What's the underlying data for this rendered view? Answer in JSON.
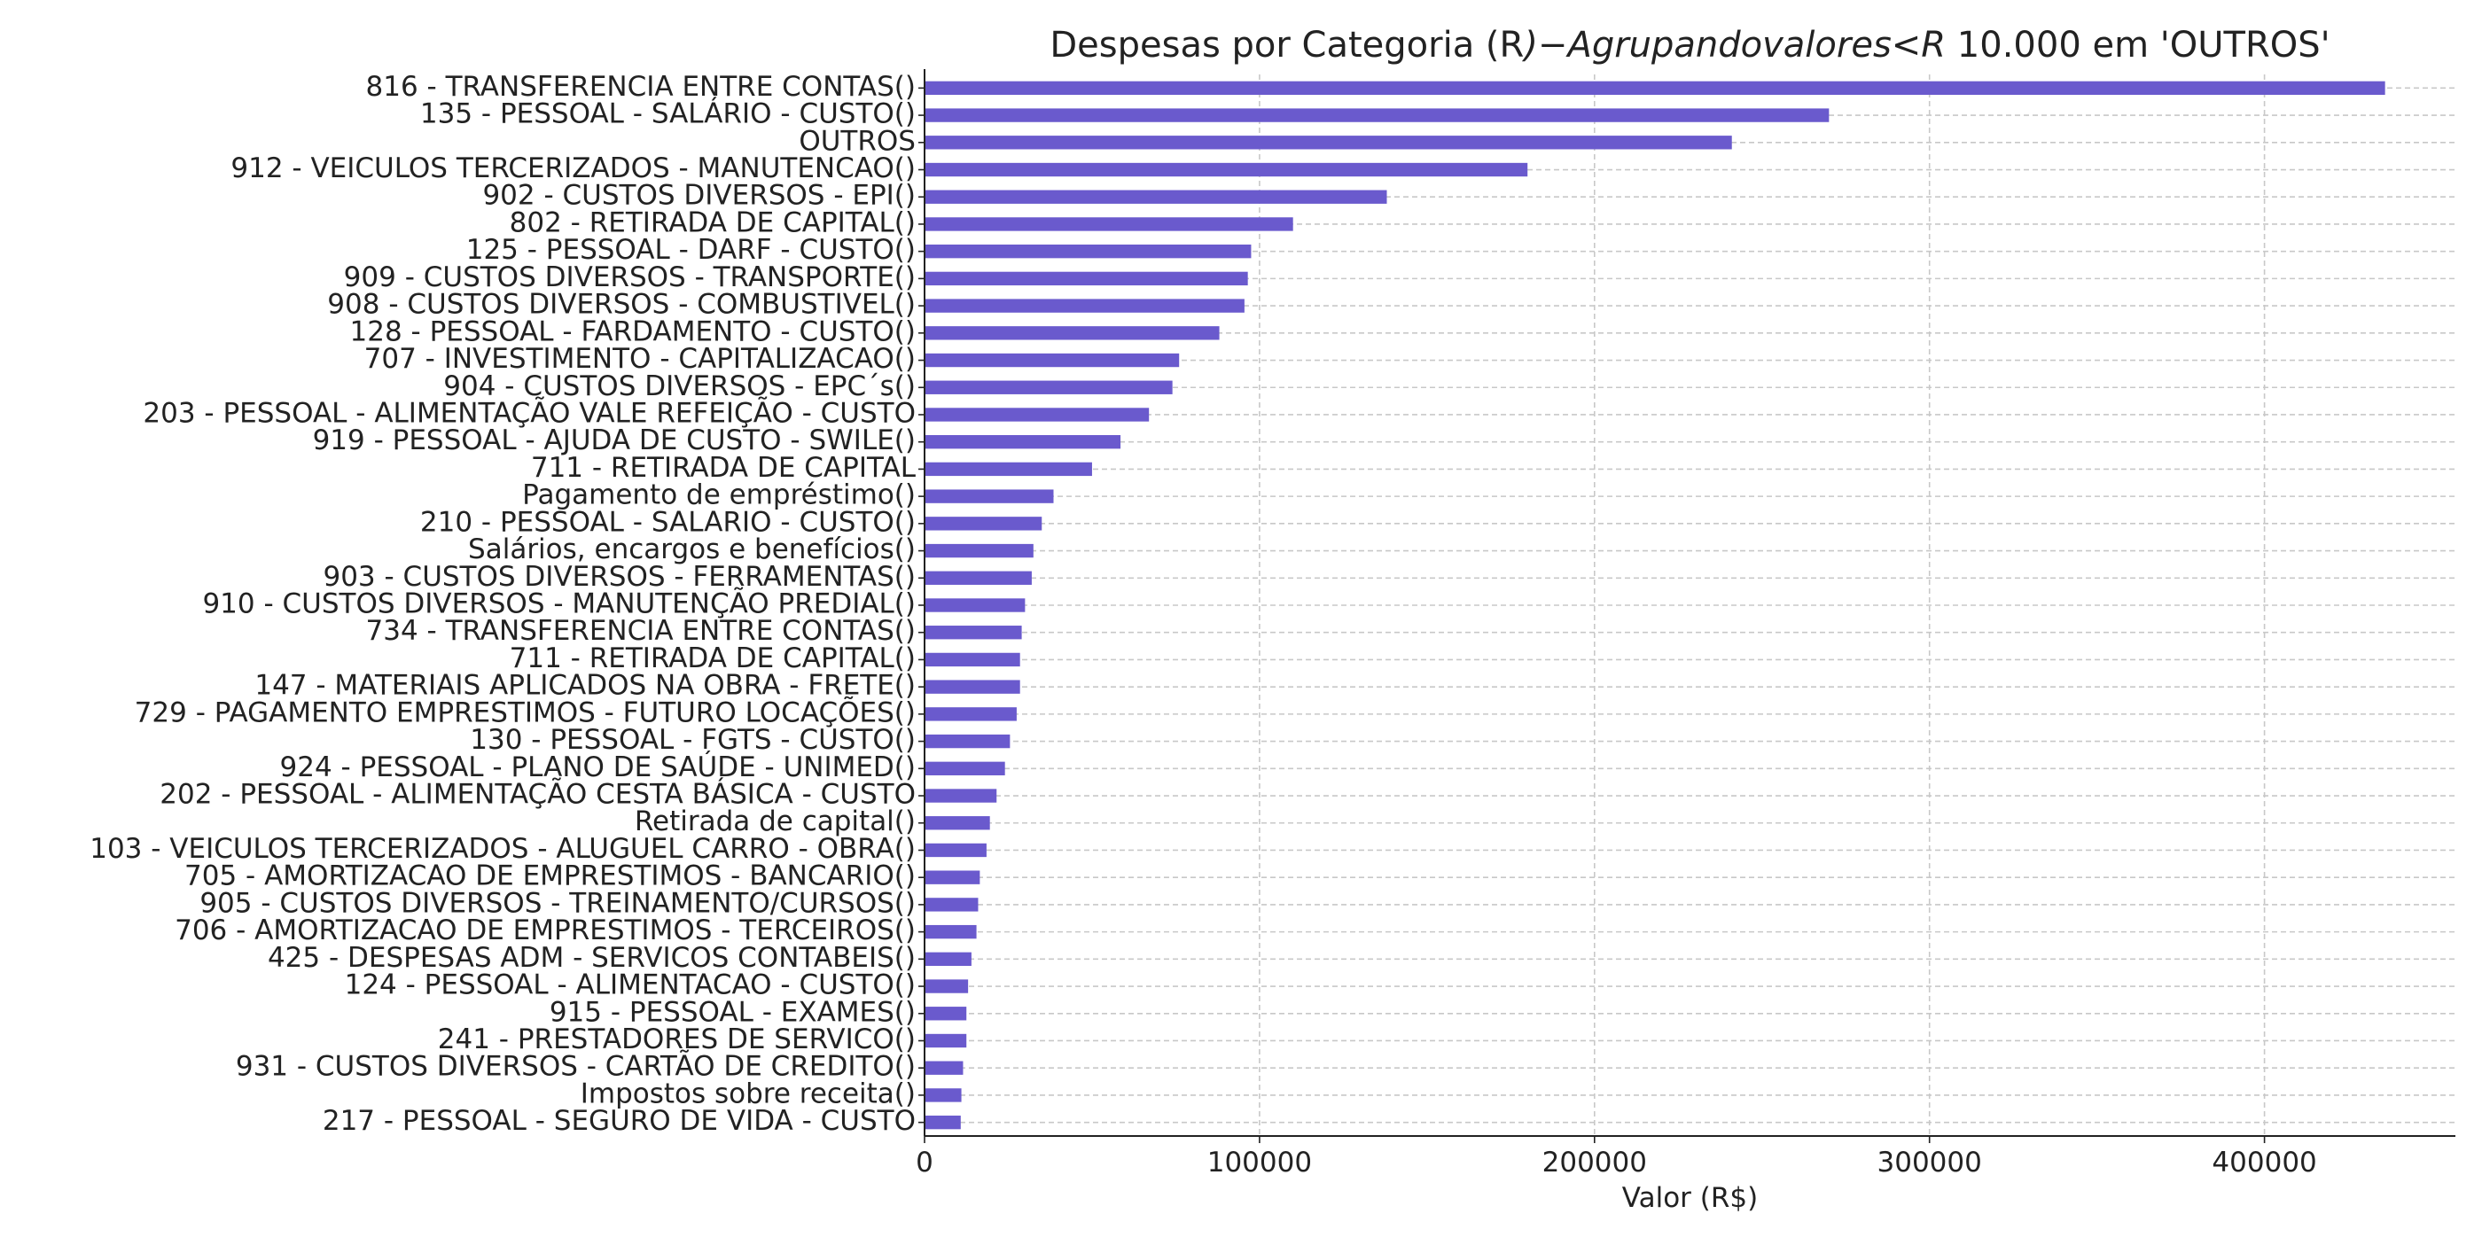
{
  "chart_data": {
    "type": "bar",
    "orientation": "horizontal",
    "title_parts": [
      {
        "text": "Despesas por Categoria (R",
        "style": "normal"
      },
      {
        "text": ")−Agrupandovalores<R",
        "style": "math"
      },
      {
        "text": " 10.000 em 'OUTROS'",
        "style": "normal"
      }
    ],
    "xlabel": "Valor (R$)",
    "ylabel": "",
    "xlim": [
      0,
      457000
    ],
    "xticks": [
      0,
      100000,
      200000,
      300000,
      400000
    ],
    "grid": true,
    "bar_color": "#6a5acd",
    "categories": [
      "816 - TRANSFERENCIA ENTRE CONTAS()",
      "135 - PESSOAL - SALÁRIO - CUSTO()",
      "OUTROS",
      "912  -  VEICULOS TERCERIZADOS - MANUTENCAO()",
      "902 - CUSTOS DIVERSOS - EPI()",
      "802 -  RETIRADA DE CAPITAL()",
      "125 - PESSOAL - DARF - CUSTO()",
      "909 - CUSTOS DIVERSOS - TRANSPORTE()",
      "908 - CUSTOS DIVERSOS - COMBUSTIVEL()",
      "128 - PESSOAL - FARDAMENTO - CUSTO()",
      "707 - INVESTIMENTO - CAPITALIZACAO()",
      "904 - CUSTOS DIVERSOS - EPC´s()",
      "203 - PESSOAL - ALIMENTAÇÃO VALE REFEIÇÃO - CUSTO",
      "919 - PESSOAL - AJUDA DE CUSTO - SWILE()",
      "711 - RETIRADA DE CAPITAL",
      "Pagamento de empréstimo()",
      "210 - PESSOAL - SALARIO - CUSTO()",
      "Salários, encargos e benefícios()",
      "903 - CUSTOS DIVERSOS - FERRAMENTAS()",
      "910 - CUSTOS DIVERSOS - MANUTENÇÃO PREDIAL()",
      "734 - TRANSFERENCIA ENTRE CONTAS()",
      "711 - RETIRADA DE CAPITAL()",
      "147 - MATERIAIS APLICADOS NA OBRA - FRETE()",
      "729 - PAGAMENTO EMPRESTIMOS - FUTURO LOCAÇÕES()",
      "130 - PESSOAL - FGTS - CUSTO()",
      "924 - PESSOAL - PLANO DE SAÚDE - UNIMED()",
      "202 - PESSOAL - ALIMENTAÇÃO CESTA BÁSICA - CUSTO",
      "Retirada de capital()",
      "103 - VEICULOS TERCERIZADOS - ALUGUEL CARRO - OBRA()",
      "705 - AMORTIZACAO DE EMPRESTIMOS - BANCARIO()",
      "905 - CUSTOS DIVERSOS - TREINAMENTO/CURSOS()",
      "706 - AMORTIZACAO DE EMPRESTIMOS - TERCEIROS()",
      "425 - DESPESAS ADM -  SERVICOS CONTABEIS()",
      "124 - PESSOAL - ALIMENTACAO - CUSTO()",
      "915 - PESSOAL - EXAMES()",
      "241 - PRESTADORES DE SERVICO()",
      "931 - CUSTOS DIVERSOS - CARTÃO DE CREDITO()",
      "Impostos sobre receita()",
      "217 - PESSOAL - SEGURO DE VIDA - CUSTO"
    ],
    "values": [
      436000,
      270000,
      241000,
      180000,
      138000,
      110000,
      97500,
      96500,
      95500,
      88000,
      76000,
      74000,
      67000,
      58500,
      50000,
      38500,
      35000,
      32500,
      32000,
      30000,
      29000,
      28500,
      28500,
      27500,
      25500,
      24000,
      21500,
      19500,
      18500,
      16500,
      16000,
      15500,
      14000,
      13000,
      12500,
      12500,
      11500,
      11000,
      10800
    ]
  }
}
